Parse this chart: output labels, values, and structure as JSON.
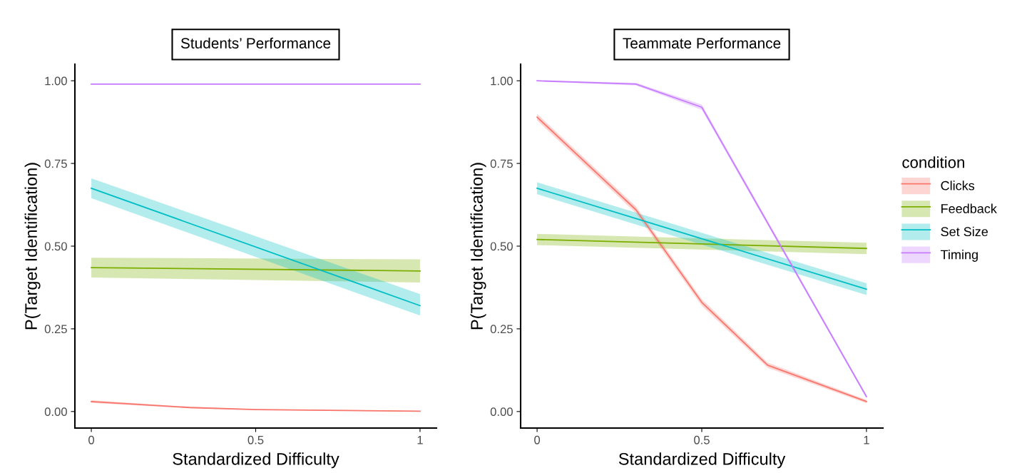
{
  "chart_data": [
    {
      "type": "line",
      "title": "Students’ Performance",
      "xlabel": "Standardized Difficulty",
      "ylabel": "P(Target Identification)",
      "xlim": [
        -0.05,
        1.05
      ],
      "ylim": [
        -0.05,
        1.05
      ],
      "xticks": [
        0,
        0.5,
        1
      ],
      "yticks": [
        {
          "value": 0,
          "label": "0.00"
        },
        {
          "value": 0.25,
          "label": "0.25"
        },
        {
          "value": 0.5,
          "label": "0.50"
        },
        {
          "value": 0.75,
          "label": "0.75"
        },
        {
          "value": 1,
          "label": "1.00"
        }
      ],
      "grid": false,
      "legend": false,
      "marker": "none",
      "line_style": "solid",
      "series": [
        {
          "color": "#f8766d",
          "x": [
            0,
            0.3,
            0.5,
            1
          ],
          "values": [
            0.03,
            0.012,
            0.006,
            0.001
          ],
          "lower": [
            0.026,
            0.01,
            0.005,
            0.0
          ],
          "upper": [
            0.034,
            0.014,
            0.007,
            0.002
          ]
        },
        {
          "color": "#7cae00",
          "x": [
            0,
            1
          ],
          "values": [
            0.435,
            0.425
          ],
          "lower": [
            0.405,
            0.39
          ],
          "upper": [
            0.465,
            0.46
          ]
        },
        {
          "color": "#00bfc4",
          "x": [
            0,
            1
          ],
          "values": [
            0.675,
            0.32
          ],
          "lower": [
            0.645,
            0.29
          ],
          "upper": [
            0.705,
            0.355
          ]
        },
        {
          "color": "#c77cff",
          "x": [
            0,
            1
          ],
          "values": [
            0.99,
            0.99
          ],
          "lower": [
            0.988,
            0.988
          ],
          "upper": [
            0.992,
            0.992
          ]
        }
      ]
    },
    {
      "type": "line",
      "title": "Teammate Performance",
      "xlabel": "Standardized Difficulty",
      "ylabel": "P(Target Identification)",
      "legend_title": "condition",
      "xlim": [
        -0.05,
        1.05
      ],
      "ylim": [
        -0.05,
        1.05
      ],
      "xticks": [
        0,
        0.5,
        1
      ],
      "yticks": [
        {
          "value": 0,
          "label": "0.00"
        },
        {
          "value": 0.25,
          "label": "0.25"
        },
        {
          "value": 0.5,
          "label": "0.50"
        },
        {
          "value": 0.75,
          "label": "0.75"
        },
        {
          "value": 1,
          "label": "1.00"
        }
      ],
      "grid": false,
      "legend": "right",
      "marker": "none",
      "line_style": "solid",
      "series": [
        {
          "name": "Clicks",
          "color": "#f8766d",
          "x": [
            0,
            0.3,
            0.5,
            0.7,
            1
          ],
          "values": [
            0.89,
            0.61,
            0.33,
            0.14,
            0.03
          ],
          "lower": [
            0.88,
            0.6,
            0.32,
            0.132,
            0.025
          ],
          "upper": [
            0.9,
            0.62,
            0.34,
            0.148,
            0.035
          ]
        },
        {
          "name": "Feedback",
          "color": "#7cae00",
          "x": [
            0,
            1
          ],
          "values": [
            0.52,
            0.493
          ],
          "lower": [
            0.503,
            0.476
          ],
          "upper": [
            0.537,
            0.51
          ]
        },
        {
          "name": "Set Size",
          "color": "#00bfc4",
          "x": [
            0,
            1
          ],
          "values": [
            0.675,
            0.37
          ],
          "lower": [
            0.657,
            0.352
          ],
          "upper": [
            0.693,
            0.388
          ]
        },
        {
          "name": "Timing",
          "color": "#c77cff",
          "x": [
            0,
            0.3,
            0.5,
            1
          ],
          "values": [
            1.0,
            0.99,
            0.92,
            0.045
          ],
          "lower": [
            0.998,
            0.986,
            0.912,
            0.04
          ],
          "upper": [
            1.0,
            0.994,
            0.928,
            0.05
          ]
        }
      ]
    }
  ]
}
